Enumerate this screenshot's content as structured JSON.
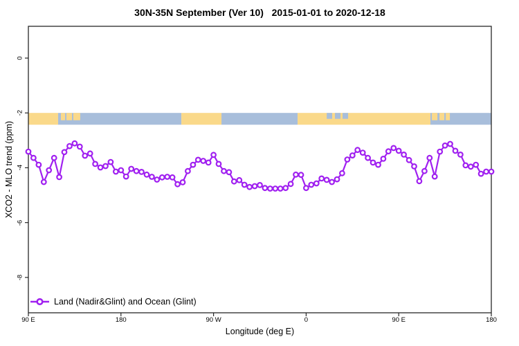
{
  "chart_data": {
    "type": "line",
    "title": "30N-35N September (Ver 10)   2015-01-01 to 2020-12-18",
    "xlabel": "Longitude (deg E)",
    "ylabel": "XCO2 - MLO trend (ppm)",
    "x_axis": {
      "start_longitude": "90 E",
      "span_deg": 450,
      "tick_positions_deg": [
        0,
        90,
        180,
        270,
        360,
        450
      ],
      "tick_labels": [
        "90 E",
        "180",
        "90 W",
        "0",
        "90 E",
        "180"
      ]
    },
    "y_axis": {
      "tick_values": [
        0,
        -2,
        -4,
        -6,
        -8
      ],
      "tick_labels": [
        "0",
        "-2",
        "-4",
        "-6",
        "-8"
      ],
      "ylim": [
        -9.29,
        1.16
      ]
    },
    "grid": "off",
    "legend_position": "bottom-left",
    "series": [
      {
        "name": "Land (Nadir&Glint) and Ocean (Glint)",
        "color": "#A020F0",
        "marker": "open-circle",
        "x_start_deg": 0,
        "x_step_deg": 5,
        "values": [
          -3.41,
          -3.64,
          -3.89,
          -4.52,
          -4.09,
          -3.64,
          -4.34,
          -3.43,
          -3.21,
          -3.11,
          -3.23,
          -3.56,
          -3.48,
          -3.86,
          -3.99,
          -3.94,
          -3.79,
          -4.14,
          -4.09,
          -4.32,
          -4.04,
          -4.12,
          -4.15,
          -4.25,
          -4.33,
          -4.43,
          -4.35,
          -4.33,
          -4.35,
          -4.6,
          -4.53,
          -4.12,
          -3.89,
          -3.71,
          -3.75,
          -3.81,
          -3.53,
          -3.86,
          -4.12,
          -4.16,
          -4.5,
          -4.45,
          -4.62,
          -4.7,
          -4.67,
          -4.63,
          -4.74,
          -4.76,
          -4.76,
          -4.76,
          -4.74,
          -4.59,
          -4.25,
          -4.26,
          -4.74,
          -4.62,
          -4.57,
          -4.39,
          -4.44,
          -4.52,
          -4.42,
          -4.2,
          -3.7,
          -3.55,
          -3.35,
          -3.45,
          -3.64,
          -3.81,
          -3.89,
          -3.67,
          -3.4,
          -3.28,
          -3.38,
          -3.52,
          -3.72,
          -3.95,
          -4.49,
          -4.12,
          -3.64,
          -4.32,
          -3.41,
          -3.19,
          -3.13,
          -3.38,
          -3.52,
          -3.91,
          -3.96,
          -3.89,
          -4.22,
          -4.14,
          -4.14
        ]
      }
    ],
    "map_strip": {
      "description": "land-ocean map band along longitude",
      "value_top": -2.0,
      "value_bottom": -2.43,
      "land_color": "#FAD98A",
      "ocean_color": "#A8BEDB",
      "base_segments": [
        {
          "from_deg": 0.0,
          "to_deg": 28.9,
          "type": "land"
        },
        {
          "from_deg": 28.9,
          "to_deg": 148.7,
          "type": "ocean"
        },
        {
          "from_deg": 148.7,
          "to_deg": 187.7,
          "type": "land"
        },
        {
          "from_deg": 187.7,
          "to_deg": 261.7,
          "type": "ocean"
        },
        {
          "from_deg": 261.7,
          "to_deg": 390.8,
          "type": "land"
        },
        {
          "from_deg": 390.8,
          "to_deg": 450.0,
          "type": "ocean"
        }
      ],
      "island_patches": [
        {
          "from_deg": 31.6,
          "to_deg": 35.7
        },
        {
          "from_deg": 37.0,
          "to_deg": 42.4
        },
        {
          "from_deg": 43.7,
          "to_deg": 50.4
        },
        {
          "from_deg": 392.2,
          "to_deg": 397.6
        },
        {
          "from_deg": 399.6,
          "to_deg": 404.3
        },
        {
          "from_deg": 405.7,
          "to_deg": 409.7
        }
      ],
      "sea_patches": [
        {
          "from_deg": 290.0,
          "to_deg": 295.3
        },
        {
          "from_deg": 298.0,
          "to_deg": 303.4
        },
        {
          "from_deg": 305.4,
          "to_deg": 310.8
        }
      ]
    },
    "axis_color": "#262626"
  }
}
